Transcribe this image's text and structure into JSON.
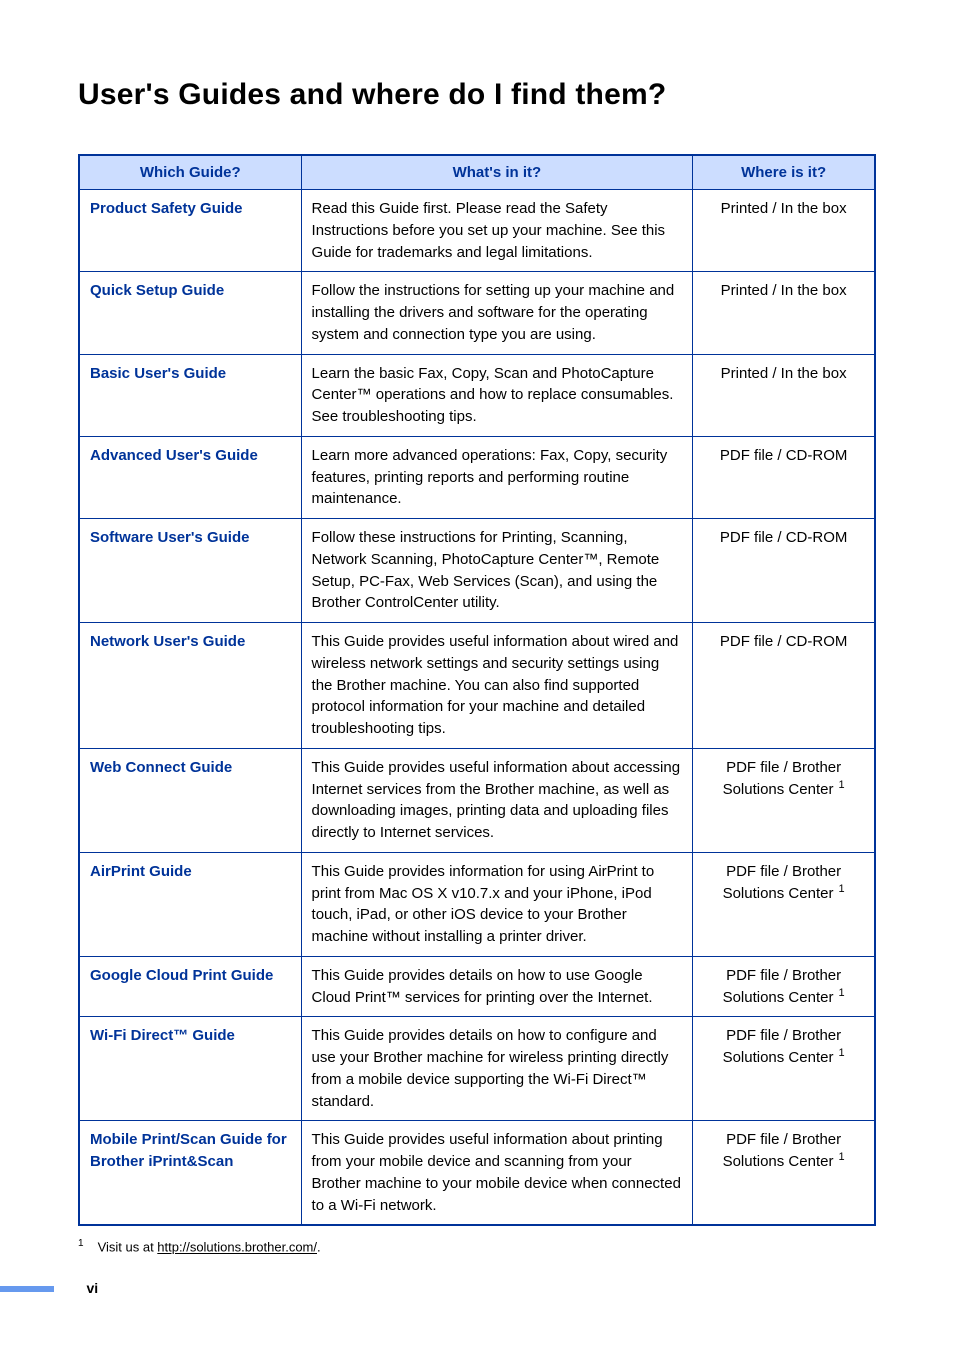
{
  "page_title": "User's Guides and where do I find them?",
  "table": {
    "headers": {
      "col1": "Which Guide?",
      "col2": "What's in it?",
      "col3": "Where is it?"
    },
    "rows": [
      {
        "guide": "Product Safety Guide",
        "what": "Read this Guide first. Please read the Safety Instructions before you set up your machine. See this Guide for trademarks and legal limitations.",
        "where": "Printed / In the box",
        "footnote": false
      },
      {
        "guide": "Quick Setup Guide",
        "what": "Follow the instructions for setting up your machine and installing the drivers and software for the operating system and connection type you are using.",
        "where": "Printed / In the box",
        "footnote": false
      },
      {
        "guide": "Basic User's Guide",
        "what": "Learn the basic Fax, Copy, Scan and PhotoCapture Center™ operations and how to replace consumables. See troubleshooting tips.",
        "where": "Printed / In the box",
        "footnote": false
      },
      {
        "guide": "Advanced User's Guide",
        "what": "Learn more advanced operations: Fax, Copy, security features, printing reports and performing routine maintenance.",
        "where": "PDF file / CD-ROM",
        "footnote": false
      },
      {
        "guide": "Software User's Guide",
        "what": "Follow these instructions for Printing, Scanning, Network Scanning, PhotoCapture Center™, Remote Setup, PC-Fax, Web Services (Scan), and using the Brother ControlCenter utility.",
        "where": "PDF file / CD-ROM",
        "footnote": false
      },
      {
        "guide": "Network User's Guide",
        "what": "This Guide provides useful information about wired and wireless network settings and security settings using the Brother machine. You can also find supported protocol information for your machine and detailed troubleshooting tips.",
        "where": "PDF file / CD-ROM",
        "footnote": false
      },
      {
        "guide": "Web Connect Guide",
        "what": "This Guide provides useful information about accessing Internet services from the Brother machine, as well as downloading images, printing data and uploading files directly to Internet services.",
        "where": "PDF file / Brother Solutions Center",
        "where_l1": "PDF file / Brother",
        "where_l2": "Solutions Center",
        "footnote": true
      },
      {
        "guide": "AirPrint Guide",
        "what": "This Guide provides information for using AirPrint to print from Mac OS X v10.7.x and your iPhone, iPod touch, iPad, or other iOS device to your Brother machine without installing a printer driver.",
        "where": "PDF file / Brother Solutions Center",
        "where_l1": "PDF file / Brother",
        "where_l2": "Solutions Center",
        "footnote": true
      },
      {
        "guide": "Google Cloud Print Guide",
        "what": "This Guide provides details on how to use Google Cloud Print™ services for printing over the Internet.",
        "where": "PDF file / Brother Solutions Center",
        "where_l1": "PDF file / Brother",
        "where_l2": "Solutions Center",
        "footnote": true
      },
      {
        "guide": "Wi-Fi Direct™ Guide",
        "what": "This Guide provides details on how to configure and use your Brother machine for wireless printing directly from a mobile device supporting the Wi-Fi Direct™ standard.",
        "where": "PDF file / Brother Solutions Center",
        "where_l1": "PDF file / Brother",
        "where_l2": "Solutions Center",
        "footnote": true
      },
      {
        "guide": "Mobile Print/Scan Guide for Brother iPrint&Scan",
        "what": "This Guide provides useful information about printing from your mobile device and scanning from your Brother machine to your mobile device when connected to a Wi-Fi network.",
        "where": "PDF file / Brother Solutions Center",
        "where_l1": "PDF file / Brother",
        "where_l2": "Solutions Center",
        "footnote": true
      }
    ]
  },
  "footnote": {
    "marker": "1",
    "prefix": "Visit us at ",
    "link": "http://solutions.brother.com/",
    "suffix": "."
  },
  "page_number": "vi",
  "colors": {
    "brand_blue": "#003399",
    "header_bg": "#ccddff",
    "footer_bar": "#6699ee",
    "text": "#000000",
    "background": "#ffffff"
  },
  "typography": {
    "title_fontsize": 30,
    "body_fontsize": 15,
    "footnote_fontsize": 13
  }
}
